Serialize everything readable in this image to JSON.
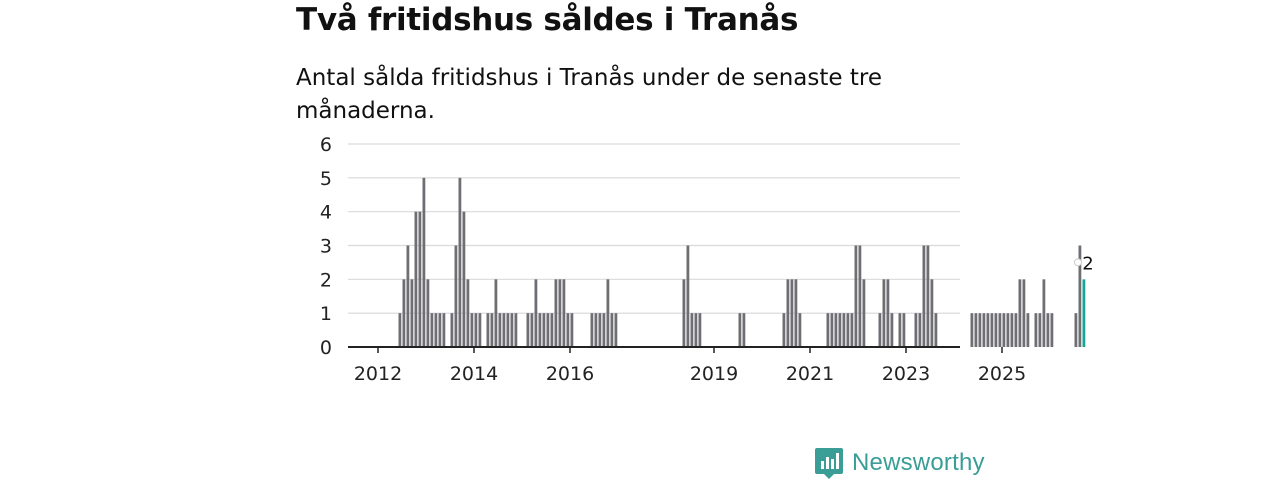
{
  "title": "Två fritidshus såldes i Tranås",
  "subtitle": "Antal sålda fritidshus i Tranås under de senaste tre månaderna.",
  "brand": {
    "name": "Newsworthy",
    "icon": "bar-chart-logo-icon",
    "color": "#3a9e96"
  },
  "colors": {
    "bar": "#6f6f73",
    "highlight": "#17a597",
    "grid": "#d9d9d9",
    "axis": "#222222"
  },
  "chart_data": {
    "type": "bar",
    "title": "Två fritidshus såldes i Tranås",
    "xlabel": "",
    "ylabel": "",
    "ylim": [
      0,
      6
    ],
    "yticks": [
      "0",
      "1",
      "2",
      "3",
      "4",
      "5",
      "6"
    ],
    "xticks": [
      {
        "label": "2012",
        "year": 2012
      },
      {
        "label": "2014",
        "year": 2014
      },
      {
        "label": "2016",
        "year": 2016
      },
      {
        "label": "2019",
        "year": 2019
      },
      {
        "label": "2021",
        "year": 2021
      },
      {
        "label": "2023",
        "year": 2023
      },
      {
        "label": "2025",
        "year": 2025
      }
    ],
    "start": {
      "year": 2011,
      "month": 6
    },
    "values": [
      0,
      0,
      0,
      0,
      0,
      0,
      0,
      0,
      0,
      0,
      0,
      0,
      1,
      2,
      3,
      2,
      4,
      4,
      5,
      2,
      1,
      1,
      1,
      1,
      0,
      1,
      3,
      5,
      4,
      2,
      1,
      1,
      1,
      0,
      1,
      1,
      2,
      1,
      1,
      1,
      1,
      1,
      0,
      0,
      1,
      1,
      2,
      1,
      1,
      1,
      1,
      2,
      2,
      2,
      1,
      1,
      0,
      0,
      0,
      0,
      1,
      1,
      1,
      1,
      2,
      1,
      1,
      0,
      0,
      0,
      0,
      0,
      0,
      0,
      0,
      0,
      0,
      0,
      0,
      0,
      0,
      0,
      0,
      2,
      3,
      1,
      1,
      1,
      0,
      0,
      0,
      0,
      0,
      0,
      0,
      0,
      0,
      1,
      1,
      0,
      0,
      0,
      0,
      0,
      0,
      0,
      0,
      0,
      1,
      2,
      2,
      2,
      1,
      0,
      0,
      0,
      0,
      0,
      0,
      1,
      1,
      1,
      1,
      1,
      1,
      1,
      3,
      3,
      2,
      0,
      0,
      0,
      1,
      2,
      2,
      1,
      0,
      1,
      1,
      0,
      0,
      1,
      1,
      3,
      3,
      2,
      1,
      0,
      0,
      0,
      0,
      0,
      0,
      0,
      0,
      1,
      1,
      1,
      1,
      1,
      1,
      1,
      1,
      1,
      1,
      1,
      1,
      2,
      2,
      1,
      0,
      1,
      1,
      2,
      1,
      1,
      0,
      0,
      0,
      0,
      0,
      1,
      3,
      2
    ],
    "highlight": {
      "index": 183,
      "value": 2,
      "label": "2"
    }
  }
}
